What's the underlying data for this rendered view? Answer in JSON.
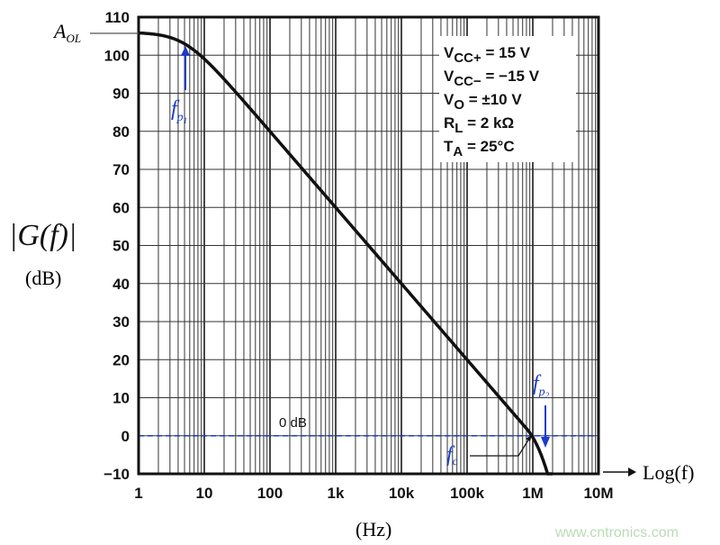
{
  "chart_data": {
    "type": "line",
    "title": "",
    "xlabel": "Log(f)",
    "xunit": "(Hz)",
    "ylabel": "|G(f)|",
    "yunit": "(dB)",
    "xscale": "log",
    "xlim": [
      1,
      10000000
    ],
    "ylim": [
      -10,
      110
    ],
    "grid": true,
    "x_ticks": [
      {
        "v": 1,
        "label": "1"
      },
      {
        "v": 10,
        "label": "10"
      },
      {
        "v": 100,
        "label": "100"
      },
      {
        "v": 1000,
        "label": "1k"
      },
      {
        "v": 10000,
        "label": "10k"
      },
      {
        "v": 100000,
        "label": "100k"
      },
      {
        "v": 1000000,
        "label": "1M"
      },
      {
        "v": 10000000,
        "label": "10M"
      }
    ],
    "y_ticks": [
      110,
      100,
      90,
      80,
      70,
      60,
      50,
      40,
      30,
      20,
      10,
      0,
      -10
    ],
    "y_tick_labels": [
      "110",
      "100",
      "90",
      "80",
      "70",
      "60",
      "50",
      "40",
      "30",
      "20",
      "10",
      "0",
      "−10"
    ],
    "series": [
      {
        "x": [
          1,
          2,
          3,
          5,
          10,
          100,
          1000,
          10000,
          100000,
          1000000,
          1500000,
          2000000
        ],
        "y": [
          106,
          105.7,
          105.3,
          103,
          99,
          80,
          60,
          40,
          20,
          0,
          -3.5,
          -10
        ]
      }
    ],
    "conditions": [
      {
        "sym": "V",
        "sub": "CC+",
        "rest": " = 15 V"
      },
      {
        "sym": "V",
        "sub": "CC−",
        "rest": " = −15 V"
      },
      {
        "sym": "V",
        "sub": "O",
        "rest": " = ±10 V"
      },
      {
        "sym": "R",
        "sub": "L",
        "rest": " = 2 kΩ"
      },
      {
        "sym": "T",
        "sub": "A",
        "rest": " = 25°C"
      }
    ],
    "annotations": {
      "aol": "A",
      "aol_sub": "OL",
      "fp1": "f",
      "fp1_sub": "p",
      "fp1_subsub": "1",
      "fp2": "f",
      "fp2_sub": "p",
      "fp2_subsub": "2",
      "fc": "f",
      "fc_sub": "c",
      "zero_db": "0 dB",
      "aol_db": 106,
      "fp1_hz": 5,
      "fc_hz": 1000000,
      "fp2_hz": 1600000
    },
    "colors": {
      "curve": "#111111",
      "grid": "#333333",
      "annotation": "#1a3cc8",
      "zero_line": "#1a3cc8"
    },
    "watermark": "www.cntronics.com"
  }
}
